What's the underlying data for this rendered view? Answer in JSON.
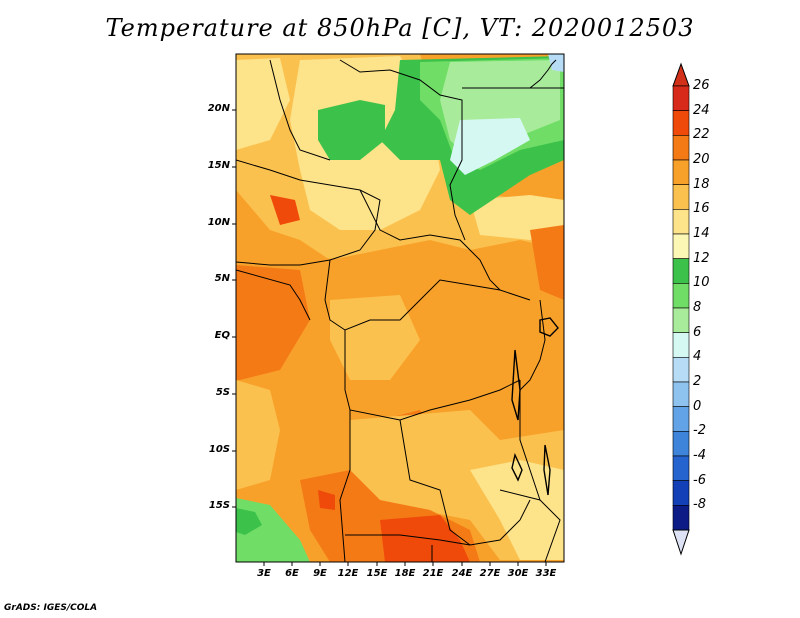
{
  "title": "Temperature at 850hPa [C], VT: 2020012503",
  "credit": "GrADS: IGES/COLA",
  "lat_labels": [
    "20N",
    "15N",
    "10N",
    "5N",
    "EQ",
    "5S",
    "10S",
    "15S"
  ],
  "lon_labels": [
    "3E",
    "6E",
    "9E",
    "12E",
    "15E",
    "18E",
    "21E",
    "24E",
    "27E",
    "30E",
    "33E"
  ],
  "colorbar": {
    "levels": [
      "26",
      "24",
      "22",
      "20",
      "18",
      "16",
      "14",
      "12",
      "10",
      "8",
      "6",
      "4",
      "2",
      "0",
      "-2",
      "-4",
      "-6",
      "-8"
    ],
    "colors": [
      "#d72a1a",
      "#ef4a0a",
      "#f47a16",
      "#f8a12a",
      "#fbc14e",
      "#fde38a",
      "#fdf7b6",
      "#3cc24a",
      "#6fdd66",
      "#a8ec9b",
      "#d6f8f3",
      "#b6dcf6",
      "#8fc3ef",
      "#61a3e6",
      "#3d84da",
      "#2563cf",
      "#1340b6",
      "#0c1b86"
    ],
    "under_color": "#dde3f5",
    "over_color": "#d23019"
  },
  "palette": {
    "warm_orange": "#f6a02e",
    "light_orange": "#fbc04f",
    "yellow": "#fde38a",
    "deep_orange": "#f47a16",
    "red": "#ef4a0a",
    "green": "#3cc24a",
    "light_green": "#a8ec9b",
    "mint": "#6fdd66",
    "ice": "#d6f8f3"
  }
}
